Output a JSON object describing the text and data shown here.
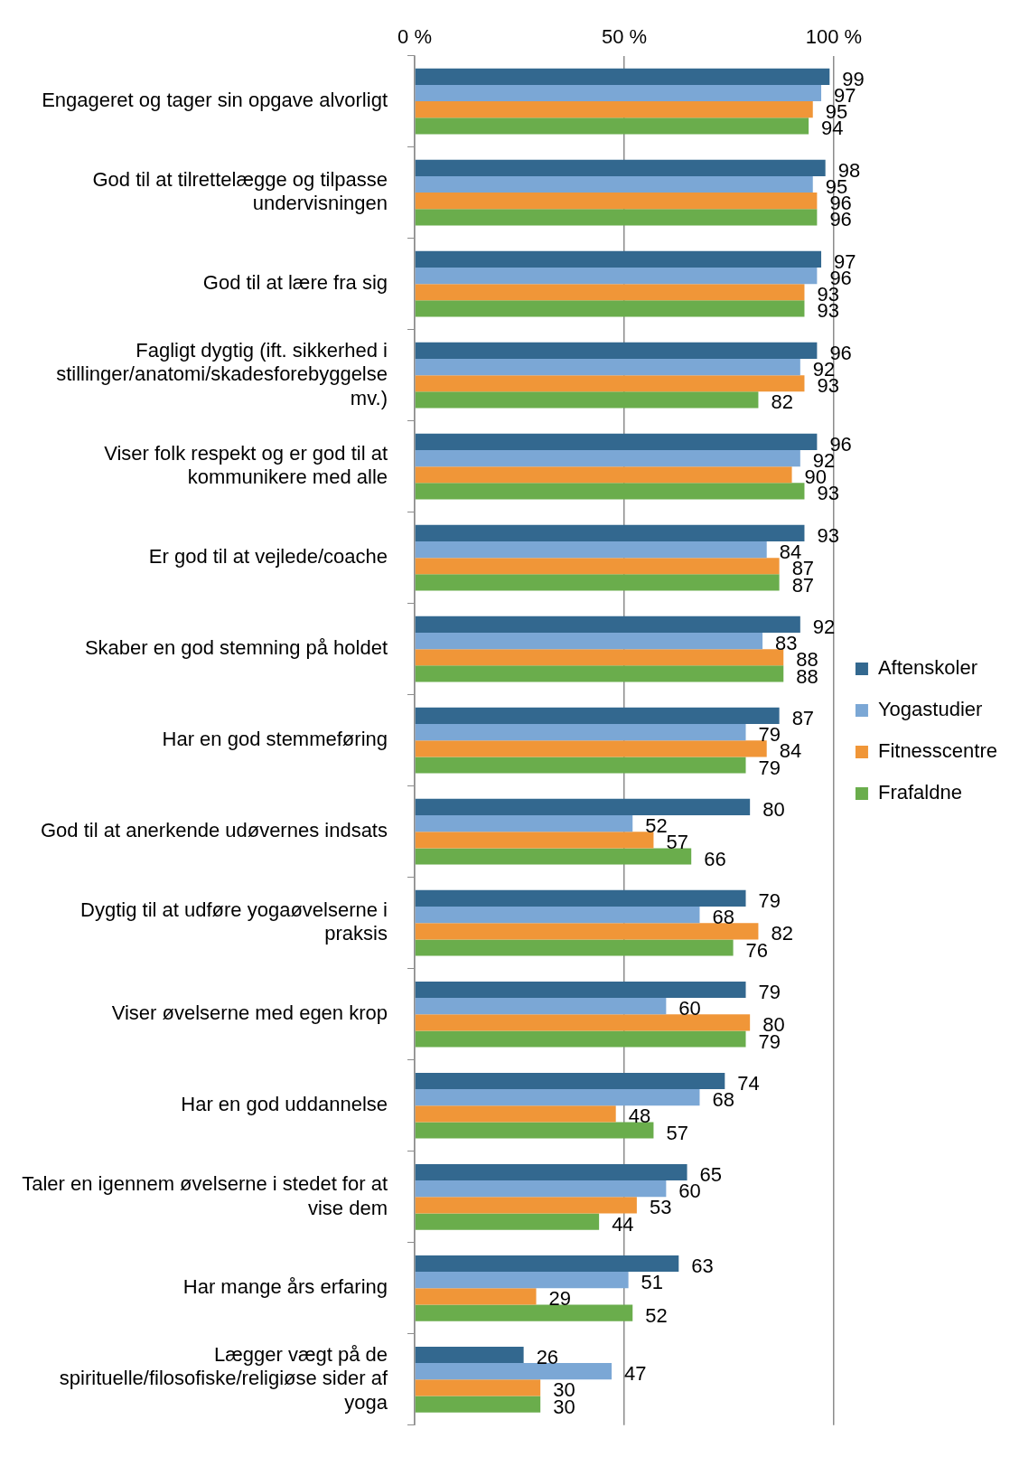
{
  "chart_data": {
    "type": "bar",
    "orientation": "horizontal",
    "categories": [
      "Engageret og tager sin opgave alvorligt",
      "God til at tilrettelægge og tilpasse undervisningen",
      "God til at lære fra sig",
      "Fagligt dygtig (ift. sikkerhed i stillinger/anatomi/skadesforebyggelse mv.)",
      "Viser folk respekt og er god til at kommunikere med alle",
      "Er god til at vejlede/coache",
      "Skaber en god stemning på holdet",
      "Har en god stemmeføring",
      "God til at anerkende udøvernes indsats",
      "Dygtig til at udføre yogaøvelserne i praksis",
      "Viser øvelserne med egen krop",
      "Har en god uddannelse",
      "Taler en igennem øvelserne i stedet for at vise dem",
      "Har mange års erfaring",
      "Lægger vægt på de spirituelle/filosofiske/religiøse sider af yoga"
    ],
    "series": [
      {
        "name": "Aftenskoler",
        "color": "#33688f",
        "values": [
          99,
          98,
          97,
          96,
          96,
          93,
          92,
          87,
          80,
          79,
          79,
          74,
          65,
          63,
          26
        ]
      },
      {
        "name": "Yogastudier",
        "color": "#7ba7d5",
        "values": [
          97,
          95,
          96,
          92,
          92,
          84,
          83,
          79,
          52,
          68,
          60,
          68,
          60,
          51,
          47
        ]
      },
      {
        "name": "Fitnesscentre",
        "color": "#f09638",
        "values": [
          95,
          96,
          93,
          93,
          90,
          87,
          88,
          84,
          57,
          82,
          80,
          48,
          53,
          29,
          30
        ]
      },
      {
        "name": "Frafaldne",
        "color": "#6aad4c",
        "values": [
          94,
          96,
          93,
          82,
          93,
          87,
          88,
          79,
          66,
          76,
          79,
          57,
          44,
          52,
          30
        ]
      }
    ],
    "xlim": [
      0,
      100
    ],
    "xticks": [
      {
        "value": 0,
        "label": "0 %"
      },
      {
        "value": 50,
        "label": "50 %"
      },
      {
        "value": 100,
        "label": "100 %"
      }
    ],
    "grid": "x",
    "legend": "right",
    "data_labels": true
  }
}
